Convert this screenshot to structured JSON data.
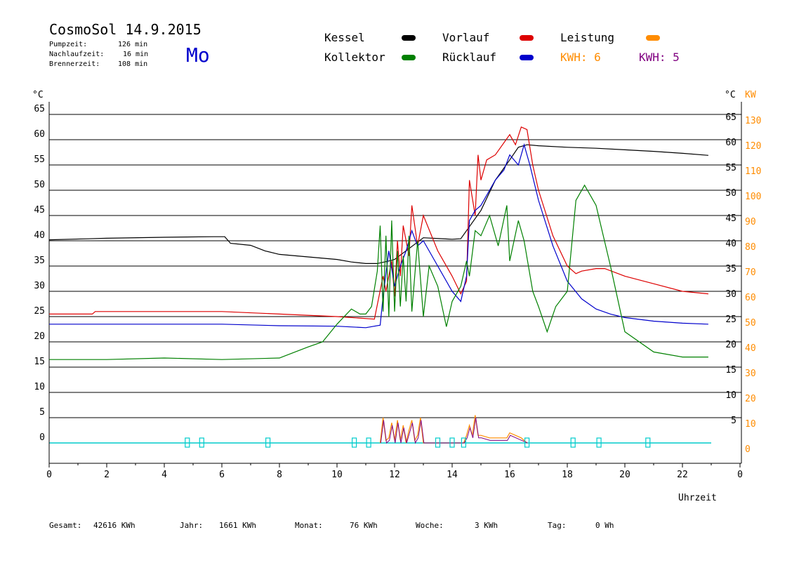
{
  "header": {
    "title": "CosmoSol 14.9.2015",
    "weekday": "Mo",
    "stats": [
      {
        "label": "Pumpzeit:",
        "value": "126 min"
      },
      {
        "label": "Nachlaufzeit:",
        "value": "16 min"
      },
      {
        "label": "Brennerzeit:",
        "value": "108 min"
      }
    ]
  },
  "legend": {
    "items": [
      {
        "label": "Kessel",
        "color": "#000000"
      },
      {
        "label": "Kollektor",
        "color": "#008000"
      },
      {
        "label": "Vorlauf",
        "color": "#dd0000"
      },
      {
        "label": "Rücklauf",
        "color": "#0000cc"
      },
      {
        "label": "Leistung",
        "color": "#ff8c00"
      }
    ],
    "kwh_orange": "KWH: 6",
    "kwh_purple": "KWH: 5",
    "kwh_orange_color": "#ff8c00",
    "kwh_purple_color": "#800080"
  },
  "axes": {
    "left_unit": "°C",
    "right_unit_c": "°C",
    "right_unit_kw": "KW",
    "x_label": "Uhrzeit"
  },
  "footer": [
    {
      "label": "Gesamt:",
      "value": "42616 KWh"
    },
    {
      "label": "Jahr:",
      "value": "1661 KWh"
    },
    {
      "label": "Monat:",
      "value": "76 KWh"
    },
    {
      "label": "Woche:",
      "value": "3 KWh"
    },
    {
      "label": "Tag:",
      "value": "0 Wh"
    }
  ],
  "chart_data": {
    "type": "line",
    "xlabel": "Uhrzeit",
    "ylabel": "°C",
    "y2label": "KW",
    "xlim": [
      0,
      24
    ],
    "ylim": [
      -4,
      68
    ],
    "y2lim": [
      -8,
      136
    ],
    "x_ticks": [
      "0",
      "2",
      "4",
      "6",
      "8",
      "10",
      "12",
      "14",
      "16",
      "18",
      "20",
      "22",
      "0"
    ],
    "y_ticks_left": [
      0,
      5,
      10,
      15,
      20,
      25,
      30,
      35,
      40,
      45,
      50,
      55,
      60,
      65
    ],
    "y_ticks_right": [
      5,
      10,
      15,
      20,
      25,
      30,
      35,
      40,
      45,
      50,
      55,
      60,
      65
    ],
    "y2_ticks": [
      0,
      10,
      20,
      30,
      40,
      50,
      60,
      70,
      80,
      90,
      100,
      110,
      120,
      130
    ],
    "grid": "horizontal",
    "series": [
      {
        "name": "Kessel",
        "color": "#000000",
        "x": [
          0,
          2,
          4,
          5.7,
          6.1,
          6.3,
          7,
          7.5,
          8,
          9,
          10,
          10.5,
          11,
          11.4,
          11.8,
          12,
          13,
          14,
          14.3,
          15,
          15.5,
          16,
          16.3,
          16.6,
          17,
          18,
          19,
          20,
          21,
          22,
          22.9
        ],
        "y": [
          40.2,
          40.5,
          40.7,
          40.8,
          40.8,
          39.5,
          39.1,
          38.0,
          37.3,
          36.8,
          36.3,
          35.8,
          35.5,
          35.5,
          36.0,
          36.3,
          40.6,
          40.3,
          40.4,
          46,
          52,
          56,
          58.5,
          59.0,
          58.8,
          58.5,
          58.3,
          58.0,
          57.7,
          57.3,
          56.9
        ]
      },
      {
        "name": "Vorlauf",
        "color": "#dd0000",
        "x": [
          0,
          1.5,
          1.6,
          3,
          6,
          8,
          10,
          11.3,
          11.6,
          11.7,
          11.9,
          12.0,
          12.1,
          12.2,
          12.3,
          12.5,
          12.6,
          12.8,
          13,
          13.5,
          14,
          14.3,
          14.5,
          14.6,
          14.8,
          14.9,
          15.0,
          15.2,
          15.5,
          16,
          16.2,
          16.4,
          16.6,
          16.8,
          17,
          17.5,
          18,
          18.3,
          18.5,
          19,
          19.3,
          20,
          21,
          22,
          22.9
        ],
        "y": [
          25.5,
          25.5,
          26,
          26,
          26,
          25.5,
          25,
          24.5,
          33,
          30,
          36,
          29,
          40,
          33,
          43,
          37,
          47,
          39,
          45,
          38,
          33,
          29.5,
          32,
          52,
          45,
          57,
          52,
          56,
          57,
          61,
          59,
          62.5,
          62,
          55,
          50,
          41,
          35,
          33.5,
          34,
          34.5,
          34.5,
          33,
          31.5,
          30,
          29.5
        ]
      },
      {
        "name": "Rücklauf",
        "color": "#0000cc",
        "x": [
          0,
          2,
          4,
          6,
          8,
          10,
          11.0,
          11.5,
          11.6,
          11.8,
          12,
          12.2,
          12.4,
          12.6,
          12.8,
          13,
          13.5,
          14,
          14.3,
          14.5,
          14.6,
          14.8,
          15,
          15.5,
          15.8,
          16,
          16.3,
          16.5,
          16.7,
          17,
          17.5,
          18,
          18.5,
          19,
          19.5,
          20,
          21,
          22,
          22.9
        ],
        "y": [
          23.5,
          23.5,
          23.5,
          23.5,
          23.2,
          23.1,
          22.8,
          23.3,
          29,
          38,
          31,
          35,
          38,
          42,
          39,
          40,
          35,
          30,
          28,
          33,
          44,
          46,
          47,
          52,
          54,
          57,
          55,
          59,
          55,
          48,
          39,
          32,
          28.5,
          26.5,
          25.5,
          24.8,
          24.1,
          23.7,
          23.5
        ]
      },
      {
        "name": "Kollektor",
        "color": "#008000",
        "x": [
          0,
          2,
          4,
          6,
          8,
          9,
          9.5,
          10,
          10.5,
          10.8,
          11.0,
          11.2,
          11.4,
          11.5,
          11.6,
          11.7,
          11.8,
          11.9,
          12.0,
          12.1,
          12.2,
          12.3,
          12.4,
          12.5,
          12.6,
          12.8,
          13,
          13.2,
          13.5,
          13.8,
          14,
          14.3,
          14.5,
          14.6,
          14.8,
          15,
          15.3,
          15.6,
          15.9,
          16,
          16.3,
          16.5,
          16.8,
          17,
          17.3,
          17.6,
          18,
          18.3,
          18.6,
          19,
          19.5,
          20,
          21,
          22,
          22.9
        ],
        "y": [
          16.5,
          16.5,
          16.8,
          16.5,
          16.8,
          19,
          20,
          23.5,
          26.5,
          25.5,
          25.5,
          27,
          34,
          43,
          26,
          41,
          25,
          44,
          26,
          38,
          27,
          37,
          28,
          41,
          26,
          40,
          25,
          35,
          31,
          23,
          28,
          31,
          36,
          33,
          42,
          41,
          45,
          39,
          47,
          36,
          44,
          40,
          30,
          27,
          22,
          27,
          30,
          48,
          51,
          47,
          35,
          22,
          18,
          17,
          17
        ]
      }
    ],
    "power_series": {
      "name": "Leistung",
      "color": "#ff8c00",
      "unit": "KW",
      "x": [
        11.5,
        11.6,
        11.7,
        11.8,
        11.9,
        12.0,
        12.1,
        12.2,
        12.3,
        12.4,
        12.5,
        12.6,
        12.7,
        12.8,
        12.9,
        13.0,
        13.1,
        14.4,
        14.5,
        14.6,
        14.7,
        14.8,
        14.9,
        15.0,
        15.3,
        15.6,
        15.9,
        16.0,
        16.2,
        16.4,
        16.6
      ],
      "y": [
        0,
        10,
        1,
        2,
        8,
        1,
        9,
        1,
        7,
        0,
        5,
        9,
        1,
        3,
        10,
        0,
        0,
        0,
        3,
        7,
        3,
        11,
        3,
        3,
        2,
        2,
        2,
        4,
        3,
        2,
        0
      ]
    },
    "pump_markers_x": [
      4.8,
      5.3,
      7.6,
      10.6,
      11.1,
      13.5,
      14.0,
      14.4,
      16.6,
      18.2,
      19.1,
      20.8
    ]
  }
}
